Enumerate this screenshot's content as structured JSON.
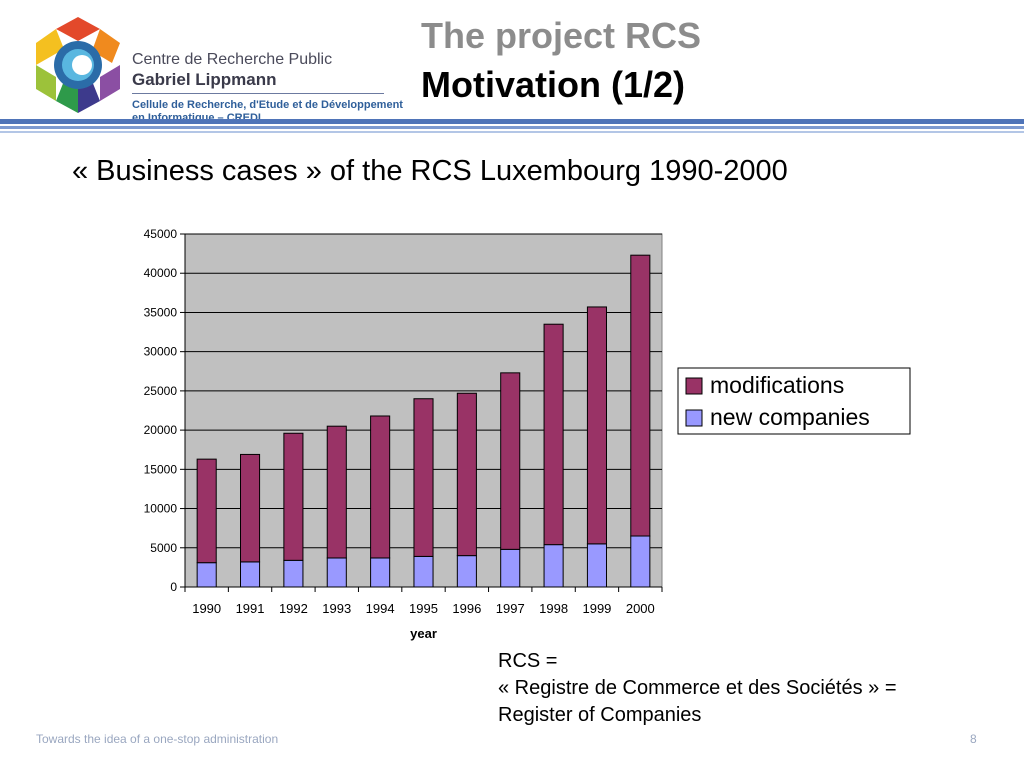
{
  "header": {
    "logo": {
      "line1": "Centre de Recherche Public",
      "line2": "Gabriel Lippmann",
      "line3": "Cellule de Recherche, d'Etude et de Développement",
      "line4": "en Informatique – CREDI"
    },
    "title": "The project RCS",
    "subtitle_title": "Motivation (1/2)"
  },
  "slide": {
    "heading": "« Business cases » of the RCS Luxembourg 1990-2000",
    "rcs_definition": {
      "line1": "RCS =",
      "line2": "« Registre de Commerce et des Sociétés » =",
      "line3": "Register of Companies"
    }
  },
  "footer": {
    "text": "Towards the idea of a one-stop administration",
    "page_number": "8"
  },
  "chart_data": {
    "type": "bar",
    "stacked": true,
    "categories": [
      "1990",
      "1991",
      "1992",
      "1993",
      "1994",
      "1995",
      "1996",
      "1997",
      "1998",
      "1999",
      "2000"
    ],
    "series": [
      {
        "name": "new companies",
        "color": "#9999ff",
        "values": [
          3100,
          3200,
          3400,
          3700,
          3700,
          3900,
          4000,
          4800,
          5400,
          5500,
          6500
        ]
      },
      {
        "name": "modifications",
        "color": "#993366",
        "values": [
          13200,
          13700,
          16200,
          16800,
          18100,
          20100,
          20700,
          22500,
          28100,
          30200,
          35800
        ]
      }
    ],
    "xlabel": "year",
    "ylabel": "",
    "ylim": [
      0,
      45000
    ],
    "yticks": [
      "0",
      "5000",
      "10000",
      "15000",
      "20000",
      "25000",
      "30000",
      "35000",
      "40000",
      "45000"
    ],
    "grid": true,
    "legend_position": "right",
    "legend_order": [
      "modifications",
      "new companies"
    ],
    "plot_background": "#c0c0c0"
  }
}
